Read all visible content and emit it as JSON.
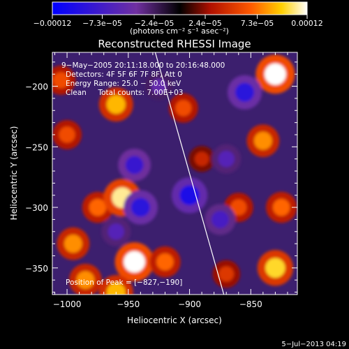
{
  "chart_data": {
    "type": "heatmap",
    "title": "Reconstructed RHESSI Image",
    "xlabel": "Heliocentric X (arcsec)",
    "ylabel": "Heliocentric Y (arcsec)",
    "xlim": [
      -1012,
      -812
    ],
    "ylim": [
      -372,
      -172
    ],
    "x_ticks": [
      -1000,
      -950,
      -900,
      -850
    ],
    "x_tick_labels": [
      "−1000",
      "−950",
      "−900",
      "−850"
    ],
    "y_ticks": [
      -200,
      -250,
      -300,
      -350
    ],
    "y_tick_labels": [
      "−200",
      "−250",
      "−300",
      "−350"
    ],
    "colorbar": {
      "range": [
        -0.00012,
        0.00012
      ],
      "ticks": [
        -0.00012,
        -7.3e-05,
        -2.4e-05,
        2.4e-05,
        7.3e-05,
        0.00012
      ],
      "tick_labels": [
        "−0.00012",
        "−7.3e−05",
        "−2.4e−05",
        "2.4e−05",
        "7.3e−05",
        "0.00012"
      ],
      "unit_label": "(photons cm⁻² s⁻¹ asec⁻²)"
    },
    "annotations": [
      "9−May−2005 20:11:18.000 to 20:16:48.000",
      "Detectors: 4F 5F 6F 7F 8F, Att 0",
      "Energy Range: 25.0 − 50.0 keV",
      "Clean     Total counts: 7.00E+03"
    ],
    "peak_label": "Position of Peak = [−827,−190]",
    "peak_position": [
      -827,
      -190
    ],
    "limb_line": [
      [
        -928,
        -172
      ],
      [
        -872,
        -372
      ]
    ],
    "blobs": [
      {
        "x": -960,
        "y": -215,
        "v": 9e-05
      },
      {
        "x": -1000,
        "y": -240,
        "v": 6e-05
      },
      {
        "x": -995,
        "y": -330,
        "v": 8e-05
      },
      {
        "x": -975,
        "y": -300,
        "v": 7e-05
      },
      {
        "x": -955,
        "y": -292,
        "v": 0.00011
      },
      {
        "x": -985,
        "y": -360,
        "v": 8e-05
      },
      {
        "x": -945,
        "y": -345,
        "v": 0.00012
      },
      {
        "x": -960,
        "y": -370,
        "v": 9e-05
      },
      {
        "x": -920,
        "y": -345,
        "v": 7e-05
      },
      {
        "x": -905,
        "y": -218,
        "v": 6e-05
      },
      {
        "x": -890,
        "y": -260,
        "v": 4e-05
      },
      {
        "x": -860,
        "y": -300,
        "v": 6e-05
      },
      {
        "x": -840,
        "y": -245,
        "v": 8e-05
      },
      {
        "x": -830,
        "y": -190,
        "v": 0.00012
      },
      {
        "x": -825,
        "y": -300,
        "v": 7e-05
      },
      {
        "x": -830,
        "y": -350,
        "v": 0.0001
      },
      {
        "x": -870,
        "y": -355,
        "v": 5e-05
      },
      {
        "x": -1005,
        "y": -195,
        "v": 6e-05
      },
      {
        "x": -945,
        "y": -265,
        "v": -8e-05
      },
      {
        "x": -900,
        "y": -290,
        "v": -0.0001
      },
      {
        "x": -855,
        "y": -205,
        "v": -9e-05
      },
      {
        "x": -875,
        "y": -310,
        "v": -7e-05
      },
      {
        "x": -960,
        "y": -320,
        "v": -6e-05
      },
      {
        "x": -925,
        "y": -200,
        "v": -5e-05
      },
      {
        "x": -870,
        "y": -260,
        "v": -6e-05
      },
      {
        "x": -940,
        "y": -300,
        "v": -9e-05
      }
    ]
  },
  "footer": {
    "date": "5−Jul−2013 04:19"
  }
}
